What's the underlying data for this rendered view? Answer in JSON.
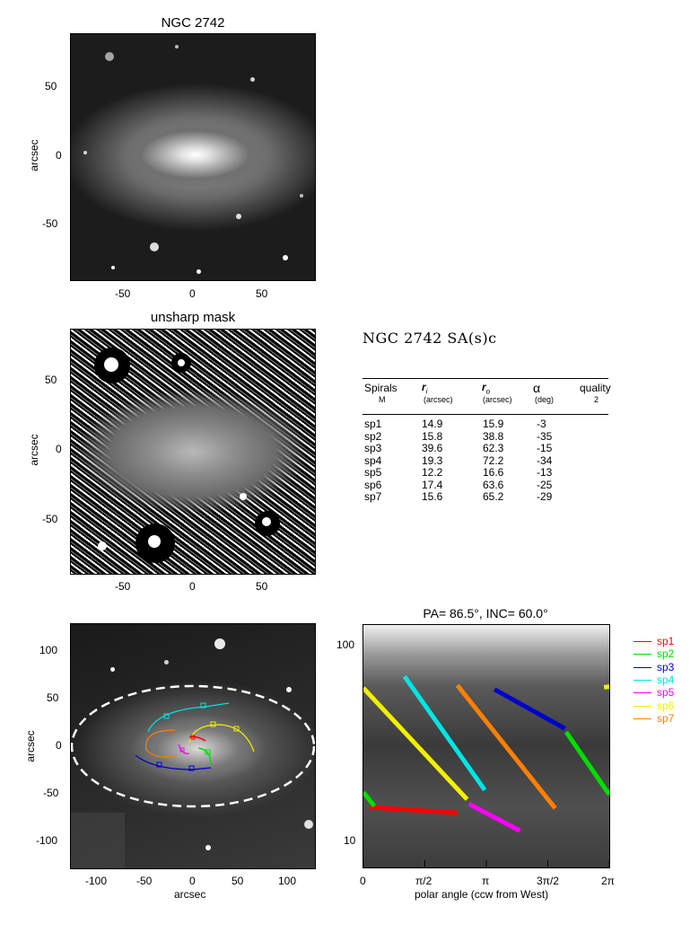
{
  "panel1": {
    "title": "NGC 2742",
    "ylabel": "arcsec",
    "yticks": [
      "50",
      "0",
      "-50"
    ],
    "xticks": [
      "-50",
      "0",
      "50"
    ]
  },
  "panel2": {
    "title": "unsharp mask",
    "ylabel": "arcsec",
    "yticks": [
      "50",
      "0",
      "-50"
    ],
    "xticks": [
      "-50",
      "0",
      "50"
    ]
  },
  "table": {
    "title": "NGC 2742  SA(s)c",
    "headers": {
      "spirals": "Spirals",
      "spirals_sub": "M",
      "ri": "r",
      "ri_sub": "i",
      "ri_unit": "(arcsec)",
      "ro": "r",
      "ro_sub": "o",
      "ro_unit": "(arcsec)",
      "alpha": "α",
      "alpha_unit": "(deg)",
      "quality": "quality",
      "quality_value": "2"
    },
    "rows": [
      {
        "name": "sp1",
        "ri": "14.9",
        "ro": "15.9",
        "alpha": "-3"
      },
      {
        "name": "sp2",
        "ri": "15.8",
        "ro": "38.8",
        "alpha": "-35"
      },
      {
        "name": "sp3",
        "ri": "39.6",
        "ro": "62.3",
        "alpha": "-15"
      },
      {
        "name": "sp4",
        "ri": "19.3",
        "ro": "72.2",
        "alpha": "-34"
      },
      {
        "name": "sp5",
        "ri": "12.2",
        "ro": "16.6",
        "alpha": "-13"
      },
      {
        "name": "sp6",
        "ri": "17.4",
        "ro": "63.6",
        "alpha": "-25"
      },
      {
        "name": "sp7",
        "ri": "15.6",
        "ro": "65.2",
        "alpha": "-29"
      }
    ]
  },
  "panel3": {
    "ylabel": "arcsec",
    "xlabel": "arcsec",
    "yticks": [
      "100",
      "50",
      "0",
      "-50",
      "-100"
    ],
    "xticks": [
      "-100",
      "-50",
      "0",
      "50",
      "100"
    ]
  },
  "panel4": {
    "title": "PA=  86.5°, INC=  60.0°",
    "xlabel": "polar angle (ccw from West)",
    "xticks": [
      "0",
      "π/2",
      "π",
      "3π/2",
      "2π"
    ],
    "yticks": [
      "100",
      "10"
    ]
  },
  "legend": [
    {
      "name": "sp1",
      "color": "#ff0000"
    },
    {
      "name": "sp2",
      "color": "#00dd00"
    },
    {
      "name": "sp3",
      "color": "#0000cc"
    },
    {
      "name": "sp4",
      "color": "#00e5e5"
    },
    {
      "name": "sp5",
      "color": "#ff00ff"
    },
    {
      "name": "sp6",
      "color": "#f0f000"
    },
    {
      "name": "sp7",
      "color": "#ff8000"
    }
  ],
  "chart_data": {
    "type": "line",
    "title": "PA=  86.5°, INC=  60.0°",
    "xlabel": "polar angle (ccw from West)",
    "x_ticks": [
      "0",
      "π/2",
      "π",
      "3π/2",
      "2π"
    ],
    "xlim": [
      0,
      6.2832
    ],
    "y_scale": "log",
    "ylim": [
      8,
      130
    ],
    "y_ticks": [
      10,
      100
    ],
    "series": [
      {
        "name": "sp1",
        "color": "#ff0000",
        "segments": [
          [
            [
              0.15,
              16.0
            ],
            [
              2.4,
              15.0
            ]
          ]
        ]
      },
      {
        "name": "sp2",
        "color": "#00dd00",
        "segments": [
          [
            [
              0.0,
              19.0
            ],
            [
              0.28,
              16.2
            ]
          ],
          [
            [
              5.18,
              38.0
            ],
            [
              6.2832,
              18.5
            ]
          ]
        ]
      },
      {
        "name": "sp3",
        "color": "#0000cc",
        "segments": [
          [
            [
              3.35,
              62.0
            ],
            [
              5.15,
              39.5
            ]
          ]
        ]
      },
      {
        "name": "sp4",
        "color": "#00e5e5",
        "segments": [
          [
            [
              1.05,
              72.0
            ],
            [
              3.1,
              19.5
            ]
          ]
        ]
      },
      {
        "name": "sp5",
        "color": "#ff00ff",
        "segments": [
          [
            [
              2.7,
              16.6
            ],
            [
              4.0,
              12.2
            ]
          ]
        ]
      },
      {
        "name": "sp6",
        "color": "#f0f000",
        "segments": [
          [
            [
              0.0,
              63.0
            ],
            [
              2.65,
              17.5
            ]
          ],
          [
            [
              6.15,
              63.5
            ],
            [
              6.2832,
              64.0
            ]
          ]
        ]
      },
      {
        "name": "sp7",
        "color": "#ff8000",
        "segments": [
          [
            [
              2.4,
              65.0
            ],
            [
              4.9,
              15.8
            ]
          ]
        ]
      }
    ]
  }
}
